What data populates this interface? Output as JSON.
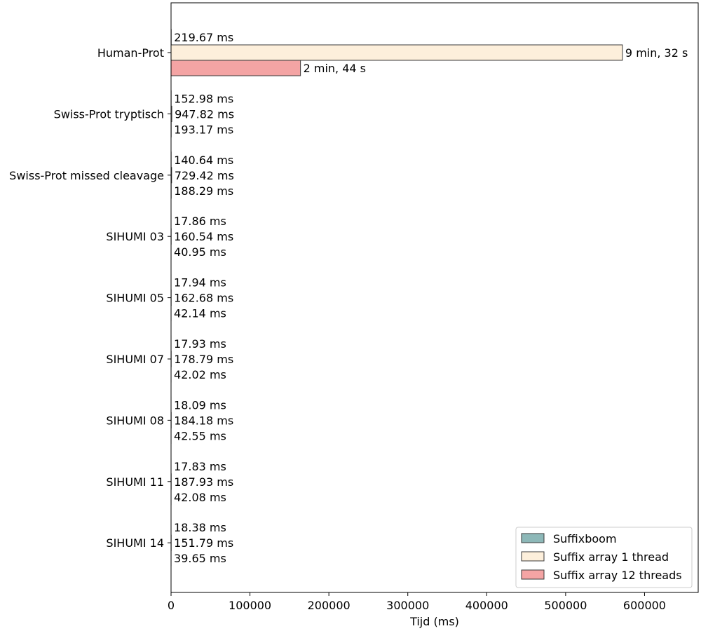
{
  "chart_data": {
    "type": "bar",
    "orientation": "horizontal",
    "title": "",
    "xlabel": "Tijd (ms)",
    "ylabel": "",
    "xlim": [
      0,
      668000
    ],
    "xticks": [
      0,
      100000,
      200000,
      300000,
      400000,
      500000,
      600000
    ],
    "grid": false,
    "legend_position": "bottom-right",
    "categories": [
      "Human-Prot",
      "Swiss-Prot tryptisch",
      "Swiss-Prot missed cleavage",
      "SIHUMI 03",
      "SIHUMI 05",
      "SIHUMI 07",
      "SIHUMI 08",
      "SIHUMI 11",
      "SIHUMI 14"
    ],
    "series": [
      {
        "name": "Suffixboom",
        "color": "#8db8b8",
        "values": [
          219.67,
          152.98,
          140.64,
          17.86,
          17.94,
          17.93,
          18.09,
          17.83,
          18.38
        ],
        "labels": [
          "219.67 ms",
          "152.98 ms",
          "140.64 ms",
          "17.86 ms",
          "17.94 ms",
          "17.93 ms",
          "18.09 ms",
          "17.83 ms",
          "18.38 ms"
        ]
      },
      {
        "name": "Suffix array 1 thread",
        "color": "#fdefdb",
        "values": [
          572000,
          947.82,
          729.42,
          160.54,
          162.68,
          178.79,
          184.18,
          187.93,
          151.79
        ],
        "labels": [
          "9 min, 32 s",
          "947.82 ms",
          "729.42 ms",
          "160.54 ms",
          "162.68 ms",
          "178.79 ms",
          "184.18 ms",
          "187.93 ms",
          "151.79 ms"
        ]
      },
      {
        "name": "Suffix array 12 threads",
        "color": "#f4a4a4",
        "values": [
          164000,
          193.17,
          188.29,
          40.95,
          42.14,
          42.02,
          42.55,
          42.08,
          39.65
        ],
        "labels": [
          "2 min, 44 s",
          "193.17 ms",
          "188.29 ms",
          "40.95 ms",
          "42.14 ms",
          "42.02 ms",
          "42.55 ms",
          "42.08 ms",
          "39.65 ms"
        ]
      }
    ]
  }
}
